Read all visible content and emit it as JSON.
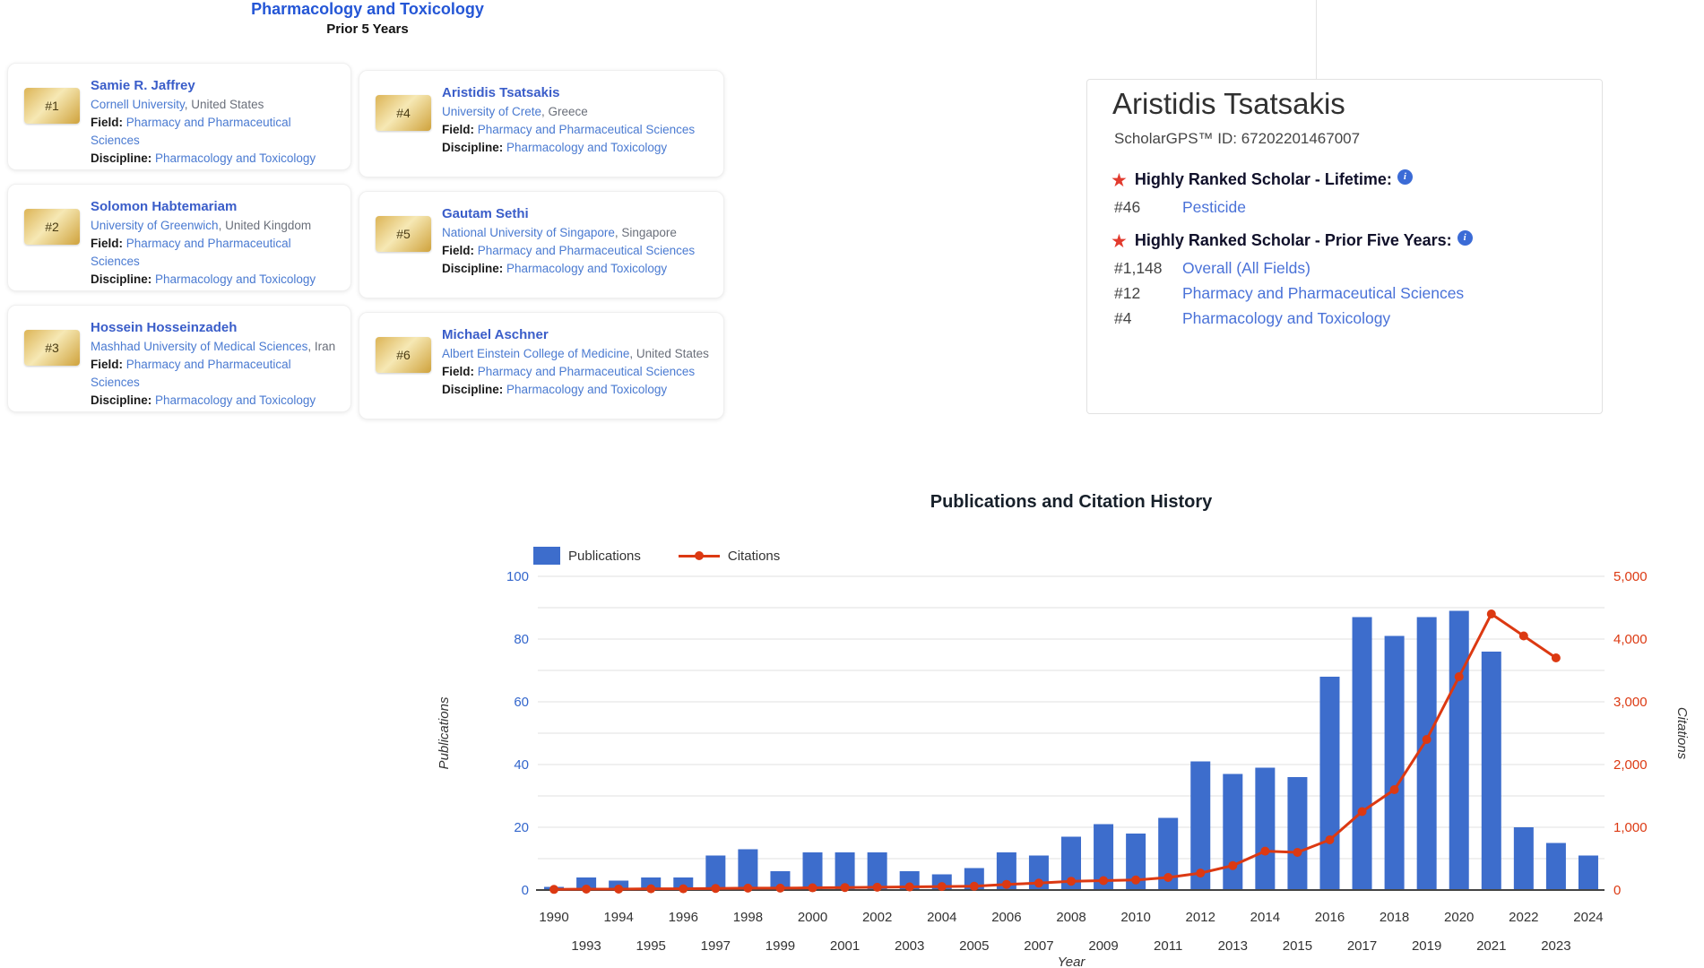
{
  "ranking_header": {
    "title": "Pharmacology and Toxicology",
    "subtitle": "Prior 5 Years"
  },
  "labels": {
    "field": "Field:",
    "discipline": "Discipline:"
  },
  "icons": {
    "star_glyph": "★",
    "info_glyph": "i"
  },
  "scholar_cards": [
    {
      "rank": "#1",
      "name": "Samie R. Jaffrey",
      "university": "Cornell University",
      "location": ", United States",
      "field": "Pharmacy and Pharmaceutical Sciences",
      "discipline": "Pharmacology and Toxicology"
    },
    {
      "rank": "#2",
      "name": "Solomon Habtemariam",
      "university": "University of Greenwich",
      "location": ", United Kingdom",
      "field": "Pharmacy and Pharmaceutical Sciences",
      "discipline": "Pharmacology and Toxicology"
    },
    {
      "rank": "#3",
      "name": "Hossein Hosseinzadeh",
      "university": "Mashhad University of Medical Sciences",
      "location": ", Iran",
      "field": "Pharmacy and Pharmaceutical Sciences",
      "discipline": "Pharmacology and Toxicology"
    },
    {
      "rank": "#4",
      "name": "Aristidis Tsatsakis",
      "university": "University of Crete",
      "location": ", Greece",
      "field": "Pharmacy and Pharmaceutical Sciences",
      "discipline": "Pharmacology and Toxicology"
    },
    {
      "rank": "#5",
      "name": "Gautam Sethi",
      "university": "National University of Singapore",
      "location": ", Singapore",
      "field": "Pharmacy and Pharmaceutical Sciences",
      "discipline": "Pharmacology and Toxicology"
    },
    {
      "rank": "#6",
      "name": "Michael Aschner",
      "university": "Albert Einstein College of Medicine",
      "location": ", United States",
      "field": "Pharmacy and Pharmaceutical Sciences",
      "discipline": "Pharmacology and Toxicology"
    }
  ],
  "profile": {
    "name": "Aristidis Tsatsakis",
    "id_line": "ScholarGPS™ ID: 67202201467007",
    "sections": [
      {
        "title": "Highly Ranked Scholar - Lifetime:",
        "entries": [
          {
            "rank": "#46",
            "label": "Pesticide"
          }
        ]
      },
      {
        "title": "Highly Ranked Scholar - Prior Five Years:",
        "entries": [
          {
            "rank": "#1,148",
            "label": "Overall (All Fields)"
          },
          {
            "rank": "#12",
            "label": "Pharmacy and Pharmaceutical Sciences"
          },
          {
            "rank": "#4",
            "label": "Pharmacology and Toxicology"
          }
        ]
      }
    ]
  },
  "chart_data": {
    "type": "bar",
    "title": "Publications and Citation History",
    "xlabel": "Year",
    "ylabel_left": "Publications",
    "ylabel_right": "Citations",
    "legend_position": "top",
    "grid": true,
    "categories": [
      "1990",
      "1993",
      "1994",
      "1995",
      "1996",
      "1997",
      "1998",
      "1999",
      "2000",
      "2001",
      "2002",
      "2003",
      "2004",
      "2005",
      "2006",
      "2007",
      "2008",
      "2009",
      "2010",
      "2011",
      "2012",
      "2013",
      "2014",
      "2015",
      "2016",
      "2017",
      "2018",
      "2019",
      "2020",
      "2021",
      "2022",
      "2023",
      "2024"
    ],
    "series": [
      {
        "name": "Publications",
        "type": "bar",
        "axis": "left",
        "color": "#3d6dcc",
        "values": [
          1,
          4,
          3,
          4,
          4,
          11,
          13,
          6,
          12,
          12,
          12,
          6,
          5,
          7,
          12,
          11,
          17,
          21,
          18,
          23,
          41,
          37,
          39,
          36,
          68,
          87,
          81,
          87,
          89,
          76,
          20,
          15,
          11
        ]
      },
      {
        "name": "Citations",
        "type": "line",
        "axis": "right",
        "color": "#dc3912",
        "values": [
          10,
          15,
          15,
          20,
          20,
          25,
          30,
          30,
          35,
          40,
          45,
          50,
          55,
          60,
          90,
          110,
          140,
          150,
          160,
          200,
          270,
          390,
          620,
          600,
          800,
          1250,
          1600,
          2400,
          3400,
          4400,
          4050,
          3700,
          null
        ]
      }
    ],
    "left_axis": {
      "min": 0,
      "max": 100,
      "ticks": [
        0,
        20,
        40,
        60,
        80,
        100
      ]
    },
    "right_axis": {
      "min": 0,
      "max": 5000,
      "ticks": [
        "0",
        "1,000",
        "2,000",
        "3,000",
        "4,000",
        "5,000"
      ]
    }
  }
}
